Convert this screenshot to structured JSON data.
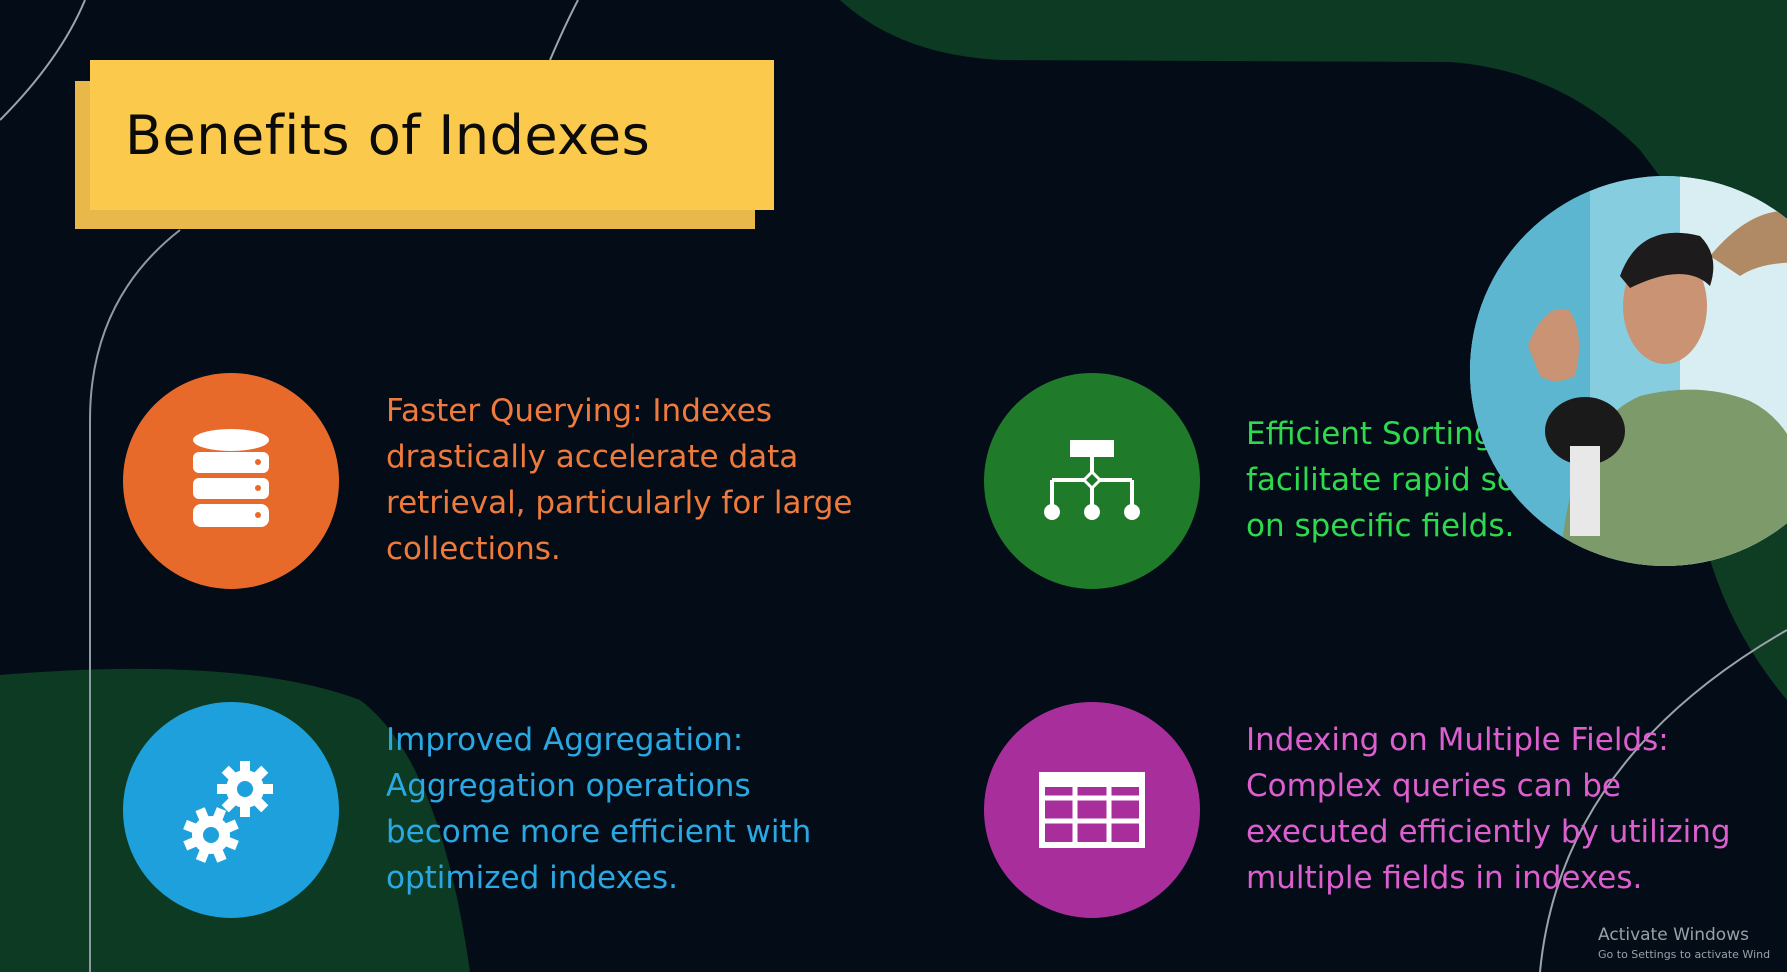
{
  "title": "Benefits of Indexes",
  "items": [
    {
      "icon": "database-icon",
      "color": "#e86a2b",
      "text": "Faster Querying: Indexes\ndrastically accelerate data\nretrieval, particularly for large\ncollections."
    },
    {
      "icon": "hierarchy-icon",
      "color": "#1f7a2a",
      "text": "Efficient Sorting\nfacilitate rapid so\non specific fields."
    },
    {
      "icon": "gears-icon",
      "color": "#1da0dc",
      "text": "Improved Aggregation:\nAggregation operations\nbecome more efficient with\noptimized indexes."
    },
    {
      "icon": "table-icon",
      "color": "#a82e9c",
      "text": "Indexing on Multiple Fields:\nComplex queries can be\nexecuted efficiently by utilizing\nmultiple fields in indexes."
    }
  ],
  "watermark": {
    "line1": "Activate Windows",
    "line2": "Go to Settings to activate Wind"
  }
}
